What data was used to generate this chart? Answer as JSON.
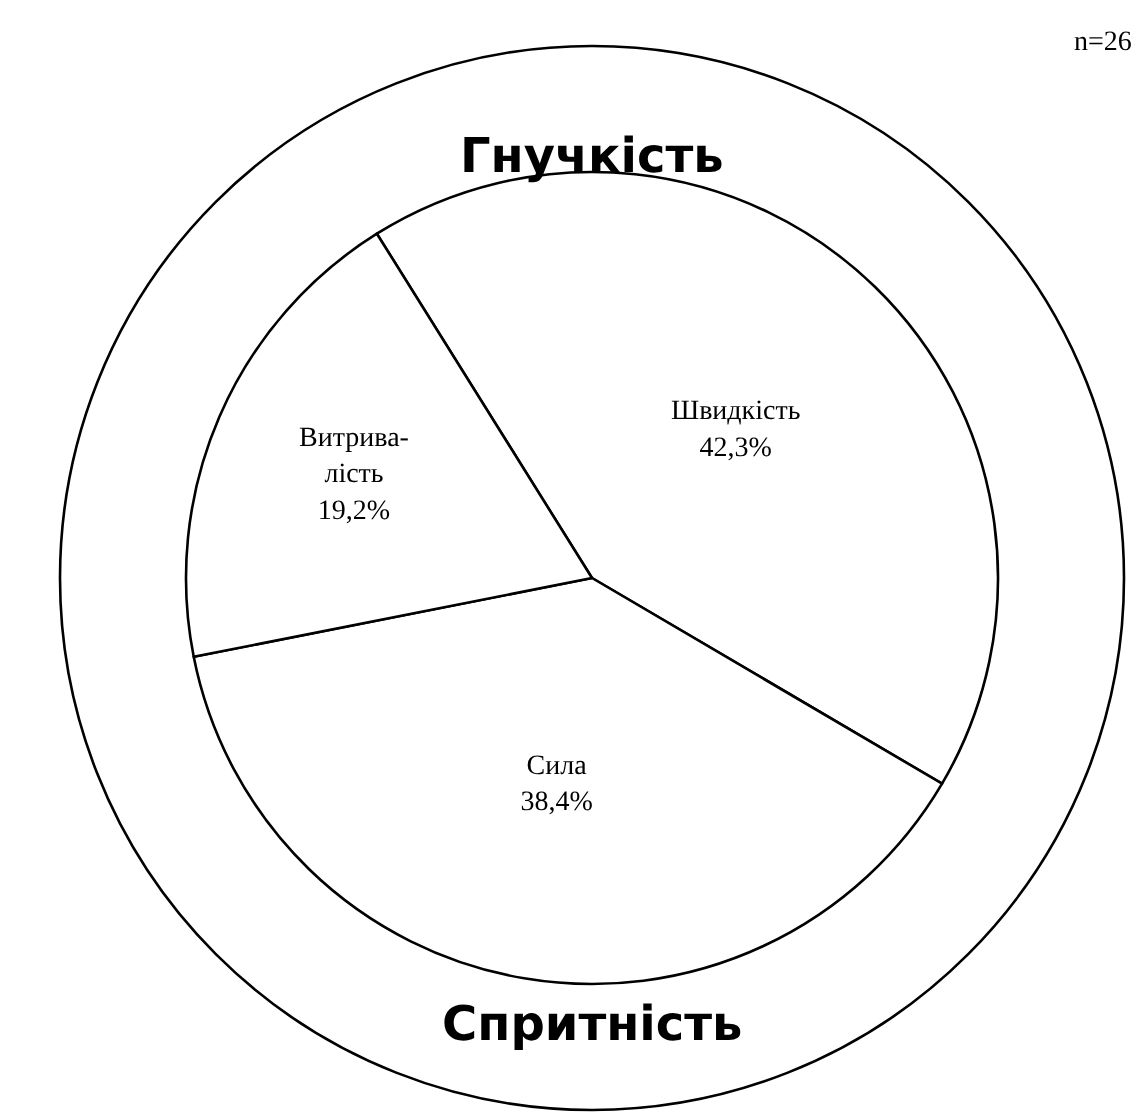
{
  "chart_data": {
    "type": "pie",
    "categories": [
      "Швидкість",
      "Сила",
      "Витрива-лість"
    ],
    "values": [
      42.3,
      38.4,
      19.2
    ],
    "value_labels": [
      "42,3%",
      "38,4%",
      "19,2%"
    ],
    "colors": [
      "#ffffff",
      "#ffffff",
      "#ffffff"
    ],
    "annotations": [
      "n=26",
      "Гнучкість",
      "Спритність"
    ],
    "legend": false
  }
}
